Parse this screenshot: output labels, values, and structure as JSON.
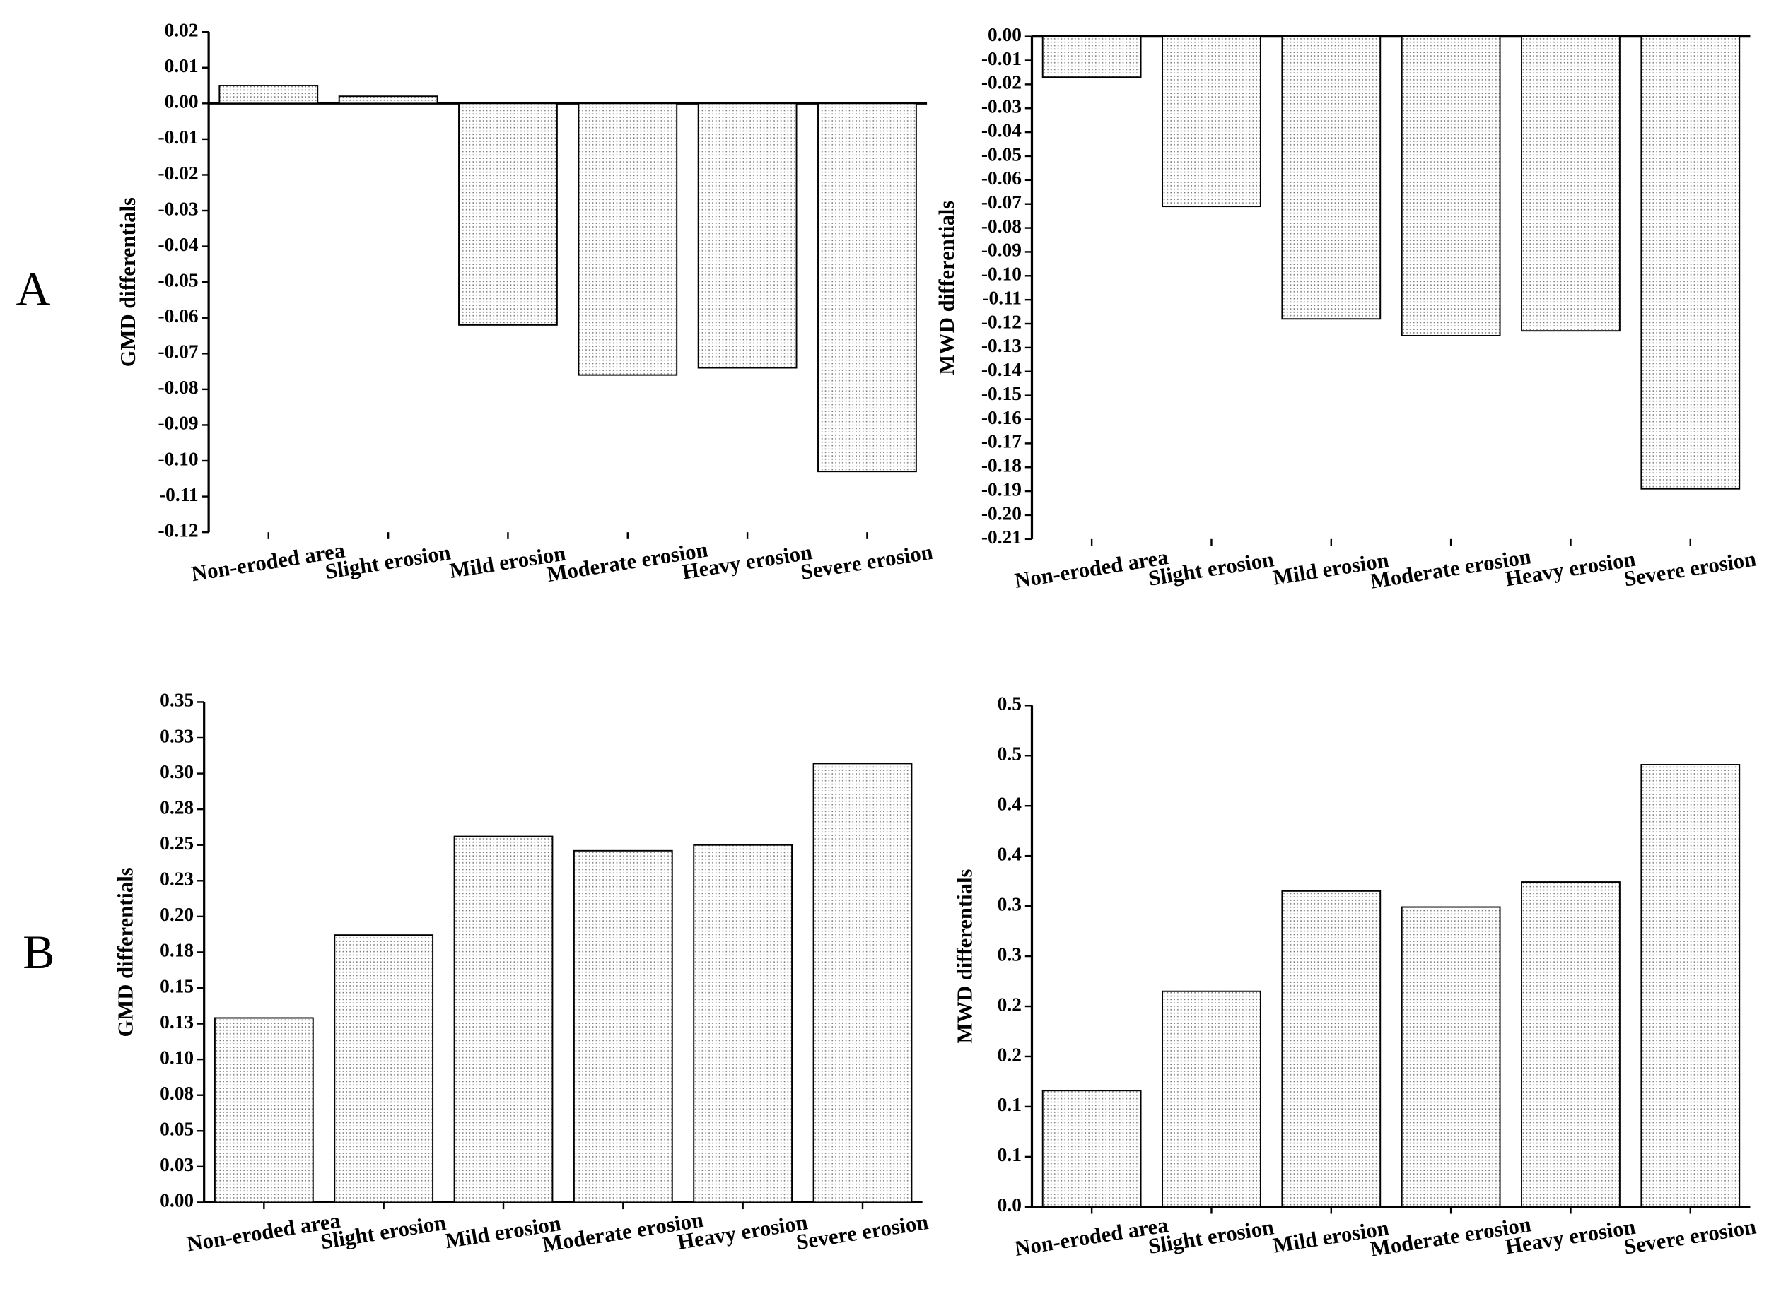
{
  "panel_labels": [
    "A",
    "B"
  ],
  "chart_data": [
    {
      "type": "bar",
      "y_label": "GMD differentials",
      "color": "#7a7a7a",
      "categories": [
        "Non-eroded area",
        "Slight erosion",
        "Mild erosion",
        "Moderate erosion",
        "Heavy erosion",
        "Severe erosion"
      ],
      "values": [
        0.005,
        0.002,
        -0.062,
        -0.076,
        -0.074,
        -0.103
      ],
      "ylim": [
        -0.12,
        0.02
      ],
      "yticks": [
        0.02,
        0.01,
        {
          "value": 0,
          "label": "0.00"
        },
        -0.01,
        -0.02,
        -0.03,
        -0.04,
        -0.05,
        -0.06,
        -0.07,
        -0.08,
        -0.09,
        {
          "value": -0.1,
          "label": "-0.10"
        },
        -0.11,
        -0.12
      ]
    },
    {
      "type": "bar",
      "y_label": "MWD differentials",
      "color": "#7a7a7a",
      "categories": [
        "Non-eroded area",
        "Slight erosion",
        "Mild erosion",
        "Moderate erosion",
        "Heavy erosion",
        "Severe erosion"
      ],
      "values": [
        -0.017,
        -0.071,
        -0.118,
        -0.125,
        -0.123,
        -0.189
      ],
      "ylim": [
        -0.21,
        0
      ],
      "yticks": [
        {
          "value": 0,
          "label": "0.00"
        },
        -0.01,
        -0.02,
        -0.03,
        -0.04,
        -0.05,
        -0.06,
        -0.07,
        -0.08,
        -0.09,
        {
          "value": -0.1,
          "label": "-0.10"
        },
        -0.11,
        -0.12,
        -0.13,
        -0.14,
        -0.15,
        -0.16,
        -0.17,
        -0.18,
        -0.19,
        {
          "value": -0.2,
          "label": "-0.20"
        },
        -0.21
      ]
    },
    {
      "type": "bar",
      "y_label": "GMD differentials",
      "color": "#7a7a7a",
      "categories": [
        "Non-eroded area",
        "Slight erosion",
        "Mild erosion",
        "Moderate erosion",
        "Heavy erosion",
        "Severe erosion"
      ],
      "values": [
        0.129,
        0.187,
        0.256,
        0.246,
        0.25,
        0.307
      ],
      "ylim": [
        0,
        0.35
      ],
      "yticks": [
        {
          "value": 0,
          "label": "0.00"
        },
        {
          "value": 0.025,
          "label": "0.03"
        },
        0.05,
        {
          "value": 0.075,
          "label": "0.08"
        },
        {
          "value": 0.1,
          "label": "0.10"
        },
        {
          "value": 0.125,
          "label": "0.13"
        },
        0.15,
        {
          "value": 0.175,
          "label": "0.18"
        },
        {
          "value": 0.2,
          "label": "0.20"
        },
        {
          "value": 0.225,
          "label": "0.23"
        },
        0.25,
        {
          "value": 0.275,
          "label": "0.28"
        },
        {
          "value": 0.3,
          "label": "0.30"
        },
        {
          "value": 0.325,
          "label": "0.33"
        },
        0.35
      ]
    },
    {
      "type": "bar",
      "y_label": "MWD differentials",
      "color": "#7a7a7a",
      "categories": [
        "Non-eroded area",
        "Slight erosion",
        "Mild erosion",
        "Moderate erosion",
        "Heavy erosion",
        "Severe erosion"
      ],
      "values": [
        0.116,
        0.215,
        0.315,
        0.299,
        0.324,
        0.441
      ],
      "ylim": [
        0,
        0.5
      ],
      "yticks": [
        {
          "value": 0,
          "label": "0.0"
        },
        {
          "value": 0.05,
          "label": "0.1"
        },
        0.1,
        {
          "value": 0.15,
          "label": "0.2"
        },
        0.2,
        {
          "value": 0.25,
          "label": "0.3"
        },
        0.3,
        {
          "value": 0.35,
          "label": "0.4"
        },
        0.4,
        {
          "value": 0.45,
          "label": "0.5"
        },
        0.5
      ]
    }
  ]
}
